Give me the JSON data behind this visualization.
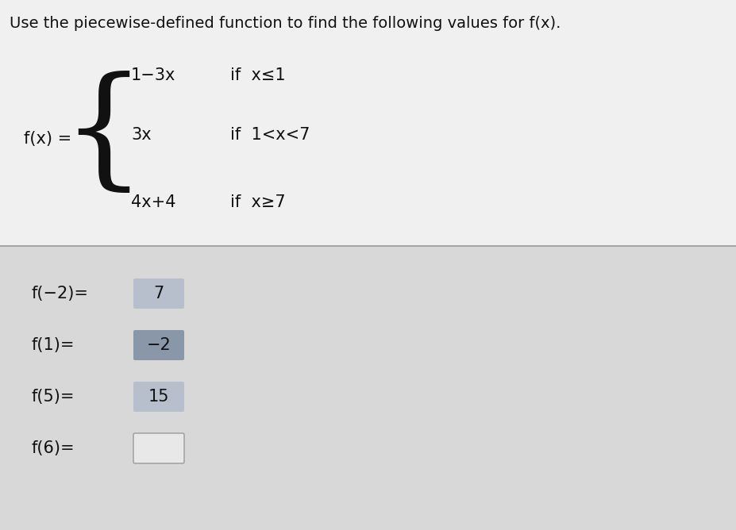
{
  "title": "Use the piecewise-defined function to find the following values for f(x).",
  "title_fontsize": 14,
  "top_bg": "#f0f0f0",
  "bottom_bg": "#d8d8d8",
  "fx_label": "f(x) = ",
  "piece1_expr": "1−3x",
  "piece1_cond": "if  x≤1",
  "piece2_expr": "3x",
  "piece2_cond": "if  1<x<7",
  "piece3_expr": "4x+4",
  "piece3_cond": "if  x≥7",
  "results": [
    {
      "label": "f(−2)=",
      "value": "7",
      "box_color": "#b8bfcc",
      "text_color": "#111111",
      "empty": false
    },
    {
      "label": "f(1)=",
      "value": "−2",
      "box_color": "#8a97a8",
      "text_color": "#111111",
      "empty": false
    },
    {
      "label": "f(5)=",
      "value": "15",
      "box_color": "#b8bfcc",
      "text_color": "#111111",
      "empty": false
    },
    {
      "label": "f(6)=",
      "value": "",
      "box_color": "#e8e8e8",
      "text_color": "#111111",
      "empty": true
    }
  ],
  "text_color": "#111111",
  "label_fontsize": 15,
  "value_fontsize": 15,
  "divider_color": "#999999"
}
